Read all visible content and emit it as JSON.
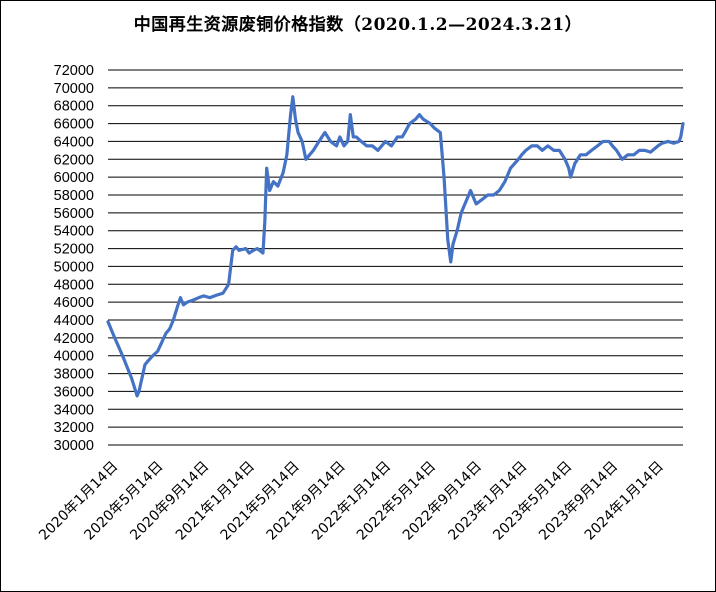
{
  "chart_data": {
    "type": "line",
    "title": "中国再生资源废铜价格指数（2020.1.2—2024.3.21）",
    "xlabel": "",
    "ylabel": "",
    "ylim": [
      30000,
      72000
    ],
    "yticks": [
      30000,
      32000,
      34000,
      36000,
      38000,
      40000,
      42000,
      44000,
      46000,
      48000,
      50000,
      52000,
      54000,
      56000,
      58000,
      60000,
      62000,
      64000,
      66000,
      68000,
      70000,
      72000
    ],
    "xlim": [
      "2020-01-02",
      "2024-03-21"
    ],
    "x_tick_labels": [
      "2020年1月14日",
      "2020年5月14日",
      "2020年9月14日",
      "2021年1月14日",
      "2021年5月14日",
      "2021年9月14日",
      "2022年1月14日",
      "2022年5月14日",
      "2022年9月14日",
      "2023年1月14日",
      "2023年5月14日",
      "2023年9月14日",
      "2024年1月14日"
    ],
    "x_tick_dates": [
      "2020-01-14",
      "2020-05-14",
      "2020-09-14",
      "2021-01-14",
      "2021-05-14",
      "2021-09-14",
      "2022-01-14",
      "2022-05-14",
      "2022-09-14",
      "2023-01-14",
      "2023-05-14",
      "2023-09-14",
      "2024-01-14"
    ],
    "grid": true,
    "legend": "none",
    "line_color": "#4472c4",
    "series": [
      {
        "x": [
          "2020-01-02",
          "2020-01-20",
          "2020-02-10",
          "2020-03-05",
          "2020-03-20",
          "2020-03-25",
          "2020-04-02",
          "2020-04-10",
          "2020-04-20",
          "2020-05-01",
          "2020-05-14",
          "2020-05-25",
          "2020-06-05",
          "2020-06-15",
          "2020-06-25",
          "2020-07-06",
          "2020-07-14",
          "2020-07-22",
          "2020-08-01",
          "2020-08-15",
          "2020-09-01",
          "2020-09-14",
          "2020-10-01",
          "2020-10-20",
          "2020-11-05",
          "2020-11-20",
          "2020-12-01",
          "2020-12-10",
          "2020-12-18",
          "2021-01-05",
          "2021-01-14",
          "2021-01-25",
          "2021-02-05",
          "2021-02-20",
          "2021-02-25",
          "2021-03-02",
          "2021-03-10",
          "2021-03-20",
          "2021-04-01",
          "2021-04-15",
          "2021-04-25",
          "2021-05-05",
          "2021-05-11",
          "2021-05-18",
          "2021-05-25",
          "2021-06-05",
          "2021-06-15",
          "2021-06-25",
          "2021-07-05",
          "2021-07-20",
          "2021-08-05",
          "2021-08-20",
          "2021-09-05",
          "2021-09-14",
          "2021-09-25",
          "2021-10-05",
          "2021-10-12",
          "2021-10-20",
          "2021-10-28",
          "2021-11-10",
          "2021-11-25",
          "2021-12-10",
          "2021-12-25",
          "2022-01-14",
          "2022-01-30",
          "2022-02-15",
          "2022-02-28",
          "2022-03-07",
          "2022-03-20",
          "2022-04-05",
          "2022-04-15",
          "2022-04-25",
          "2022-05-14",
          "2022-05-25",
          "2022-06-10",
          "2022-06-20",
          "2022-06-30",
          "2022-07-08",
          "2022-07-14",
          "2022-07-25",
          "2022-08-05",
          "2022-08-20",
          "2022-08-30",
          "2022-09-14",
          "2022-09-30",
          "2022-10-15",
          "2022-10-31",
          "2022-11-15",
          "2022-11-30",
          "2022-12-15",
          "2023-01-05",
          "2023-01-14",
          "2023-01-25",
          "2023-02-10",
          "2023-02-25",
          "2023-03-10",
          "2023-03-25",
          "2023-04-10",
          "2023-04-25",
          "2023-05-10",
          "2023-05-20",
          "2023-05-25",
          "2023-06-05",
          "2023-06-20",
          "2023-07-05",
          "2023-07-20",
          "2023-08-05",
          "2023-08-20",
          "2023-09-05",
          "2023-09-14",
          "2023-09-25",
          "2023-10-10",
          "2023-10-25",
          "2023-11-10",
          "2023-11-25",
          "2023-12-10",
          "2023-12-25",
          "2024-01-14",
          "2024-01-25",
          "2024-02-10",
          "2024-02-25",
          "2024-03-10",
          "2024-03-15",
          "2024-03-21"
        ],
        "values": [
          43800,
          42000,
          40000,
          37500,
          35500,
          36000,
          37500,
          39000,
          39500,
          40000,
          40500,
          41500,
          42500,
          43000,
          44000,
          45500,
          46500,
          45700,
          46000,
          46200,
          46500,
          46700,
          46500,
          46800,
          47000,
          48000,
          51800,
          52200,
          51800,
          52000,
          51500,
          51800,
          52000,
          51500,
          55000,
          61000,
          58500,
          59500,
          59000,
          60500,
          62500,
          67000,
          69000,
          66500,
          65000,
          64000,
          62000,
          62500,
          63000,
          64000,
          65000,
          64000,
          63500,
          64500,
          63500,
          64000,
          67000,
          64500,
          64500,
          64000,
          63500,
          63500,
          63000,
          64000,
          63500,
          64500,
          64500,
          65000,
          66000,
          66500,
          67000,
          66500,
          66000,
          65500,
          65000,
          60000,
          53000,
          50500,
          52500,
          54000,
          56000,
          57500,
          58500,
          57000,
          57500,
          58000,
          58000,
          58500,
          59500,
          61000,
          62000,
          62500,
          63000,
          63500,
          63500,
          63000,
          63500,
          63000,
          63000,
          62000,
          61000,
          60000,
          61500,
          62500,
          62500,
          63000,
          63500,
          64000,
          64000,
          63500,
          63000,
          62000,
          62500,
          62500,
          63000,
          63000,
          62800,
          63500,
          63800,
          64000,
          63800,
          64000,
          64500,
          66000
        ]
      }
    ]
  }
}
